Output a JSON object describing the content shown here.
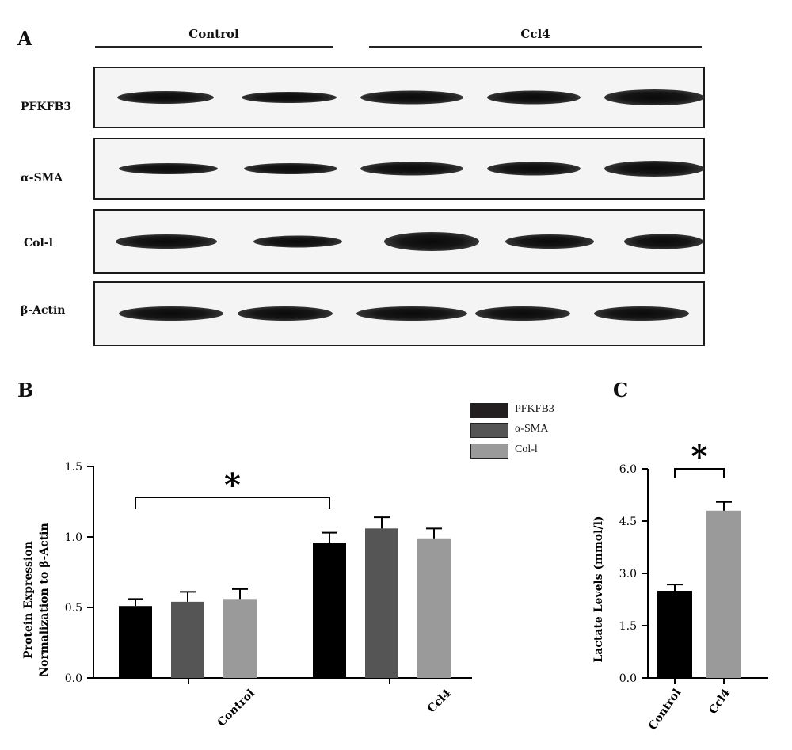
{
  "panel_a": {
    "letter": "A",
    "groups": [
      "Control",
      "Ccl4"
    ],
    "rows": [
      {
        "label": "PFKFB3"
      },
      {
        "label": "α-SMA"
      },
      {
        "label": "Col-l"
      },
      {
        "label": "β-Actin"
      }
    ]
  },
  "chart_data": [
    {
      "panel": "B",
      "type": "bar",
      "categories": [
        "Control",
        "Ccl4"
      ],
      "series": [
        {
          "name": "PFKFB3",
          "values": [
            0.51,
            0.96
          ],
          "errors": [
            0.05,
            0.07
          ],
          "color": "#000000"
        },
        {
          "name": "α-SMA",
          "values": [
            0.54,
            1.06
          ],
          "errors": [
            0.07,
            0.08
          ],
          "color": "#555555"
        },
        {
          "name": "Col-l",
          "values": [
            0.56,
            0.99
          ],
          "errors": [
            0.07,
            0.07
          ],
          "color": "#9a9a9a"
        }
      ],
      "ylabel": "Protein Expression Normalization to β-Actin",
      "ylim": [
        0,
        1.5
      ],
      "yticks": [
        "0.0",
        "0.5",
        "1.0",
        "1.5"
      ],
      "annotation": "*",
      "legend": "top-right"
    },
    {
      "panel": "C",
      "type": "bar",
      "categories": [
        "Control",
        "Ccl4"
      ],
      "values": [
        2.5,
        4.8
      ],
      "errors": [
        0.18,
        0.25
      ],
      "colors": [
        "#000000",
        "#9a9a9a"
      ],
      "ylabel": "Lactate Levels (mmol/l)",
      "ylim": [
        0,
        6.0
      ],
      "yticks": [
        "0.0",
        "1.5",
        "3.0",
        "4.5",
        "6.0"
      ],
      "annotation": "*"
    }
  ]
}
